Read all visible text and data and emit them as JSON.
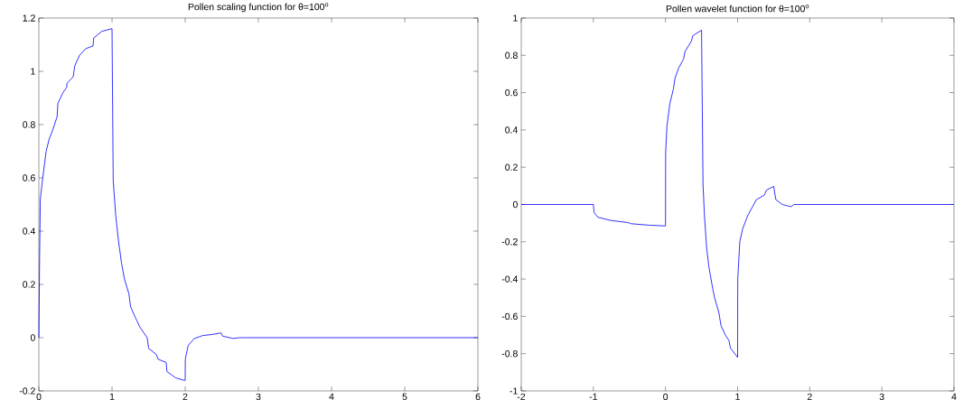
{
  "chart_data": [
    {
      "type": "line",
      "title": "Pollen scaling function for θ=100$^{o}$",
      "xlim": [
        0,
        6
      ],
      "ylim": [
        -0.2,
        1.2
      ],
      "xticks": [
        0,
        1,
        2,
        3,
        4,
        5,
        6
      ],
      "yticks": [
        -0.2,
        0,
        0.2,
        0.4,
        0.6,
        0.8,
        1,
        1.2
      ],
      "series": [
        {
          "color": "#0000ff",
          "x": [
            0,
            0.01,
            0.02,
            0.053,
            0.1,
            0.14,
            0.19,
            0.25,
            0.26,
            0.33,
            0.38,
            0.385,
            0.47,
            0.49,
            0.556,
            0.64,
            0.74,
            0.75,
            0.86,
            0.996,
            1.0,
            1.016,
            1.05,
            1.09,
            1.13,
            1.17,
            1.23,
            1.255,
            1.32,
            1.38,
            1.48,
            1.5,
            1.605,
            1.63,
            1.74,
            1.75,
            1.87,
            1.98,
            2.0,
            2.002,
            2.04,
            2.12,
            2.24,
            2.37,
            2.49,
            2.51,
            2.65,
            2.75,
            6
          ],
          "values": [
            0,
            0.3,
            0.52,
            0.6,
            0.7,
            0.745,
            0.78,
            0.83,
            0.88,
            0.92,
            0.94,
            0.955,
            0.98,
            1.02,
            1.06,
            1.085,
            1.095,
            1.125,
            1.15,
            1.16,
            1.16,
            0.59,
            0.46,
            0.36,
            0.28,
            0.22,
            0.165,
            0.115,
            0.075,
            0.04,
            0.0,
            -0.04,
            -0.063,
            -0.081,
            -0.093,
            -0.127,
            -0.151,
            -0.16,
            -0.16,
            -0.08,
            -0.03,
            -0.004,
            0.008,
            0.012,
            0.018,
            0.006,
            -0.003,
            0,
            0
          ]
        }
      ]
    },
    {
      "type": "line",
      "title": "Pollen wavelet function for θ=100$^{o}$",
      "xlim": [
        -2,
        4
      ],
      "ylim": [
        -1,
        1
      ],
      "xticks": [
        -2,
        -1,
        0,
        1,
        2,
        3,
        4
      ],
      "yticks": [
        -1,
        -0.8,
        -0.6,
        -0.4,
        -0.2,
        0,
        0.2,
        0.4,
        0.6,
        0.8,
        1
      ],
      "series": [
        {
          "color": "#0000ff",
          "x": [
            -2,
            -1,
            -0.99,
            -0.94,
            -0.77,
            -0.52,
            -0.48,
            -0.23,
            0,
            0.002,
            0.02,
            0.06,
            0.11,
            0.13,
            0.18,
            0.25,
            0.27,
            0.36,
            0.38,
            0.5,
            0.52,
            0.54,
            0.57,
            0.6,
            0.64,
            0.68,
            0.74,
            0.77,
            0.83,
            0.88,
            0.9,
            1.0,
            1.002,
            1.03,
            1.07,
            1.14,
            1.2,
            1.26,
            1.37,
            1.4,
            1.5,
            1.53,
            1.62,
            1.74,
            1.78,
            4
          ],
          "values": [
            0,
            0,
            -0.043,
            -0.068,
            -0.085,
            -0.097,
            -0.103,
            -0.111,
            -0.115,
            0.28,
            0.42,
            0.54,
            0.62,
            0.675,
            0.73,
            0.78,
            0.82,
            0.877,
            0.906,
            0.935,
            0.11,
            -0.06,
            -0.23,
            -0.33,
            -0.42,
            -0.5,
            -0.58,
            -0.65,
            -0.7,
            -0.73,
            -0.77,
            -0.82,
            -0.4,
            -0.2,
            -0.13,
            -0.06,
            -0.017,
            0.026,
            0.05,
            0.077,
            0.097,
            0.026,
            0.0,
            -0.012,
            0.0,
            0
          ]
        }
      ]
    }
  ]
}
